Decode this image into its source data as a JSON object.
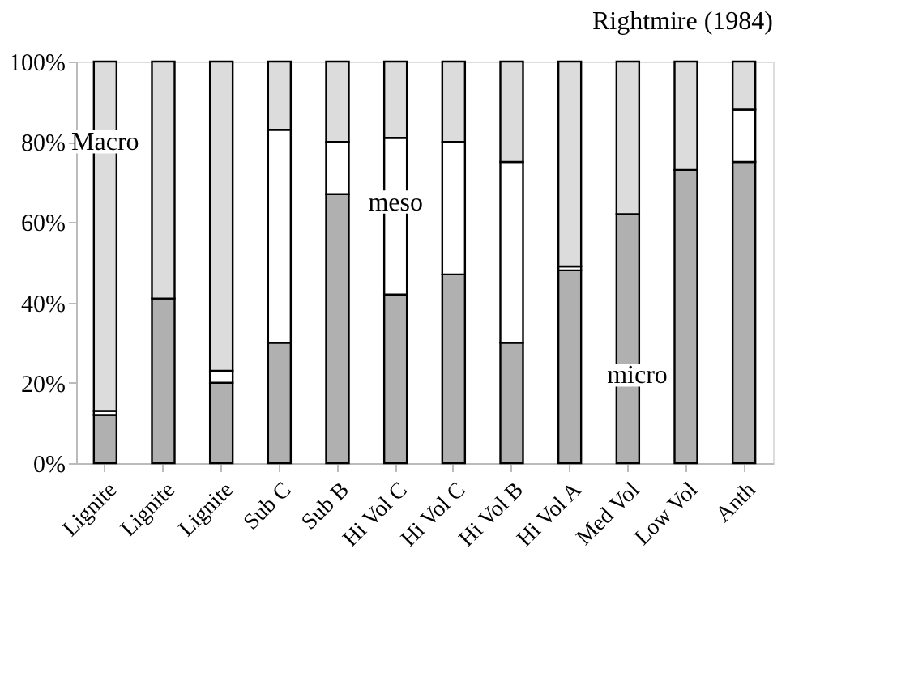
{
  "chart_data": {
    "type": "bar",
    "stacked": true,
    "title": "Rightmire (1984)",
    "categories": [
      "Lignite",
      "Lignite",
      "Lignite",
      "Sub C",
      "Sub B",
      "Hi Vol C",
      "Hi Vol C",
      "Hi Vol B",
      "Hi Vol A",
      "Med Vol",
      "Low Vol",
      "Anth"
    ],
    "series": [
      {
        "name": "micro",
        "color": "#b0b0b0",
        "values": [
          12,
          41,
          20,
          30,
          67,
          42,
          47,
          30,
          48,
          62,
          73,
          75
        ]
      },
      {
        "name": "meso",
        "color": "#ffffff",
        "values": [
          1,
          0,
          3,
          53,
          13,
          39,
          33,
          45,
          1,
          0,
          0,
          13
        ]
      },
      {
        "name": "Macro",
        "color": "#dcdcdc",
        "values": [
          87,
          59,
          77,
          17,
          20,
          19,
          20,
          25,
          51,
          38,
          27,
          12
        ]
      }
    ],
    "ylim": [
      0,
      100
    ],
    "yticks": [
      {
        "value": 0,
        "label": "0%"
      },
      {
        "value": 20,
        "label": "20%"
      },
      {
        "value": 40,
        "label": "40%"
      },
      {
        "value": 60,
        "label": "60%"
      },
      {
        "value": 80,
        "label": "80%"
      },
      {
        "value": 100,
        "label": "100%"
      }
    ],
    "grid": false
  }
}
